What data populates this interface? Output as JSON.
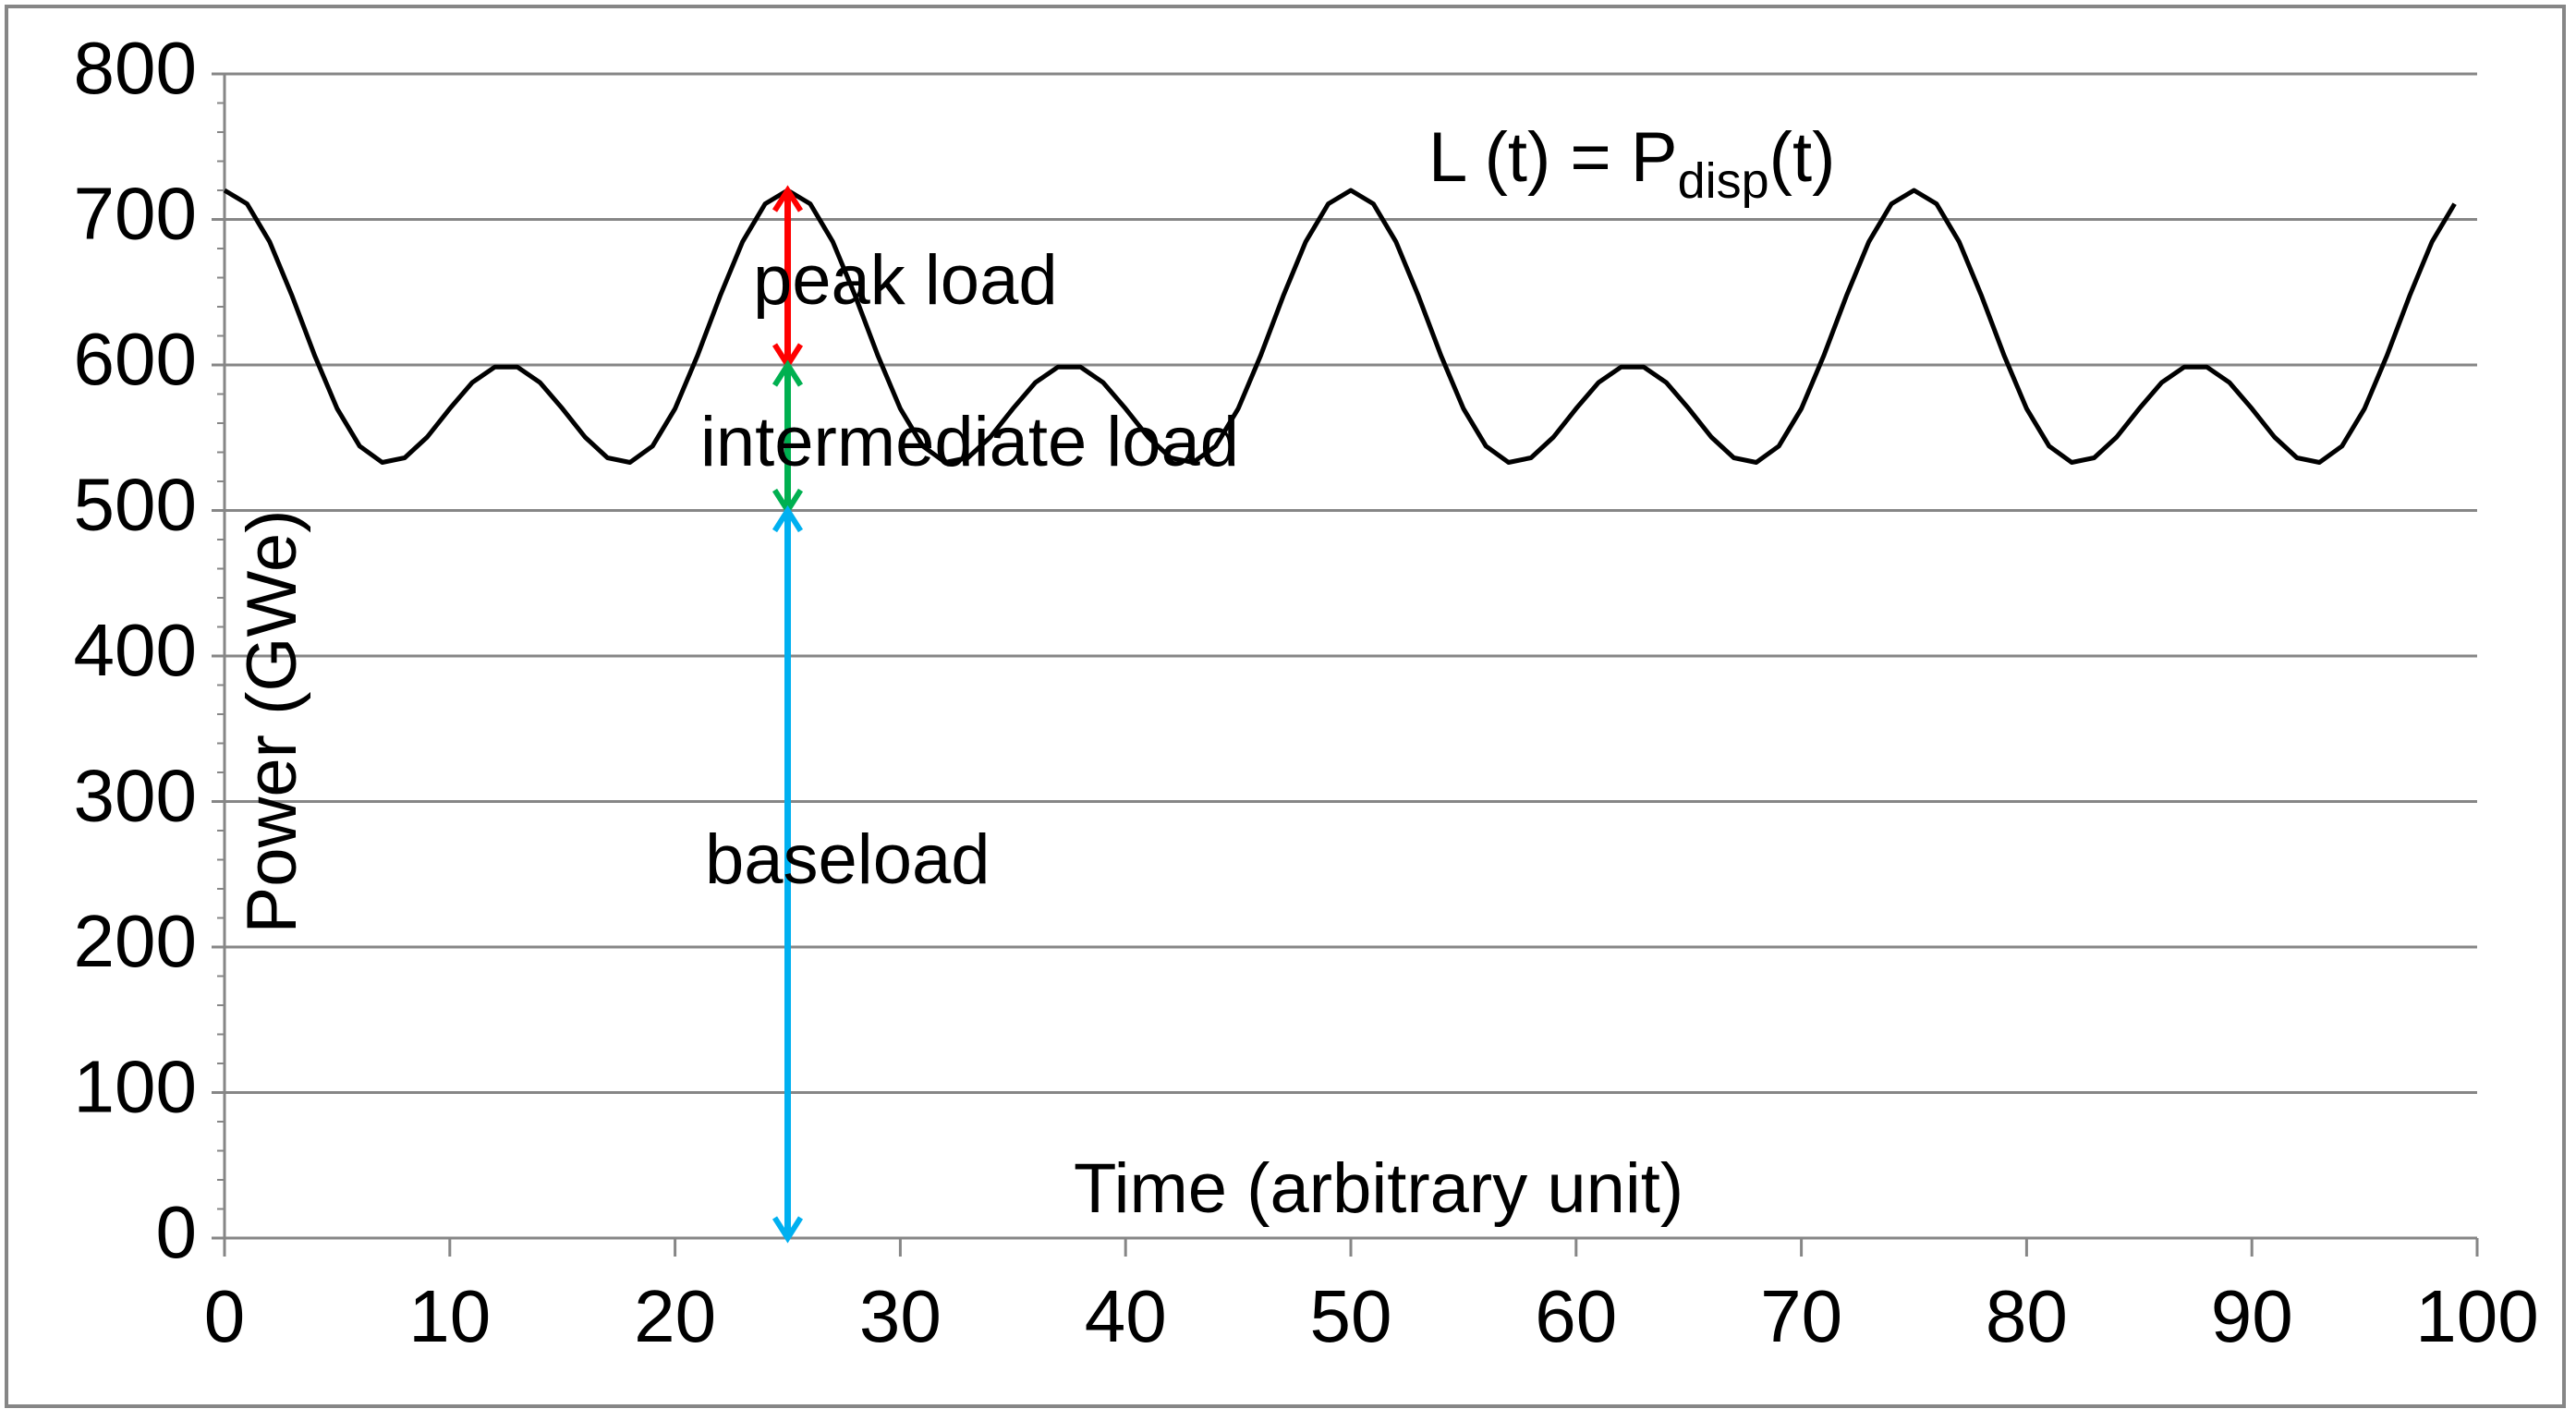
{
  "chart_data": {
    "type": "line",
    "x_label": "Time (arbitrary unit)",
    "y_label": "Power (GWe)",
    "formula": {
      "main": "L (t) = P",
      "subscript": "disp",
      "suffix": "(t)"
    },
    "x": [
      0,
      1,
      2,
      3,
      4,
      5,
      6,
      7,
      8,
      9,
      10,
      11,
      12,
      13,
      14,
      15,
      16,
      17,
      18,
      19,
      20,
      21,
      22,
      23,
      24,
      25,
      26,
      27,
      28,
      29,
      30,
      31,
      32,
      33,
      34,
      35,
      36,
      37,
      38,
      39,
      40,
      41,
      42,
      43,
      44,
      45,
      46,
      47,
      48,
      49,
      50,
      51,
      52,
      53,
      54,
      55,
      56,
      57,
      58,
      59,
      60,
      61,
      62,
      63,
      64,
      65,
      66,
      67,
      68,
      69,
      70,
      71,
      72,
      73,
      74,
      75,
      76,
      77,
      78,
      79,
      80,
      81,
      82,
      83,
      84,
      85,
      86,
      87,
      88,
      89,
      90,
      91,
      92,
      93,
      94,
      95,
      96,
      97,
      98,
      99
    ],
    "series": [
      {
        "name": "L (t)",
        "color": "#000000",
        "values": [
          720,
          710.7,
          684.7,
          647.5,
          606.6,
          570.0,
          544.2,
          533.0,
          536.2,
          550.5,
          570.0,
          588.0,
          598.6,
          598.6,
          588.0,
          570.0,
          550.5,
          536.2,
          533.0,
          544.2,
          570.0,
          606.6,
          647.5,
          684.7,
          710.7,
          720,
          710.7,
          684.7,
          647.5,
          606.6,
          570.0,
          544.2,
          533.0,
          536.2,
          550.5,
          570.0,
          588.0,
          598.6,
          598.6,
          588.0,
          570.0,
          550.5,
          536.2,
          533.0,
          544.2,
          570.0,
          606.6,
          647.5,
          684.7,
          710.7,
          720,
          710.7,
          684.7,
          647.5,
          606.6,
          570.0,
          544.2,
          533.0,
          536.2,
          550.5,
          570.0,
          588.0,
          598.6,
          598.6,
          588.0,
          570.0,
          550.5,
          536.2,
          533.0,
          544.2,
          570.0,
          606.6,
          647.5,
          684.7,
          710.7,
          720,
          710.7,
          684.7,
          647.5,
          606.6,
          570.0,
          544.2,
          533.0,
          536.2,
          550.5,
          570.0,
          588.0,
          598.6,
          598.6,
          588.0,
          570.0,
          550.5,
          536.2,
          533.0,
          544.2,
          570.0,
          606.6,
          647.5,
          684.7,
          710.7
        ]
      }
    ],
    "arrows": [
      {
        "label": "peak load",
        "x": 25,
        "from": 600,
        "to": 720,
        "color": "#ff0000"
      },
      {
        "label": "intermediate load",
        "x": 25,
        "from": 500,
        "to": 600,
        "color": "#00b050"
      },
      {
        "label": "baseload",
        "x": 25,
        "from": 0,
        "to": 500,
        "color": "#00b0f0"
      }
    ],
    "xlim": [
      0,
      100
    ],
    "xticks": [
      0,
      10,
      20,
      30,
      40,
      50,
      60,
      70,
      80,
      90,
      100
    ],
    "ylim": [
      0,
      800
    ],
    "yticks": [
      0,
      100,
      200,
      300,
      400,
      500,
      600,
      700,
      800
    ],
    "grid": true
  }
}
